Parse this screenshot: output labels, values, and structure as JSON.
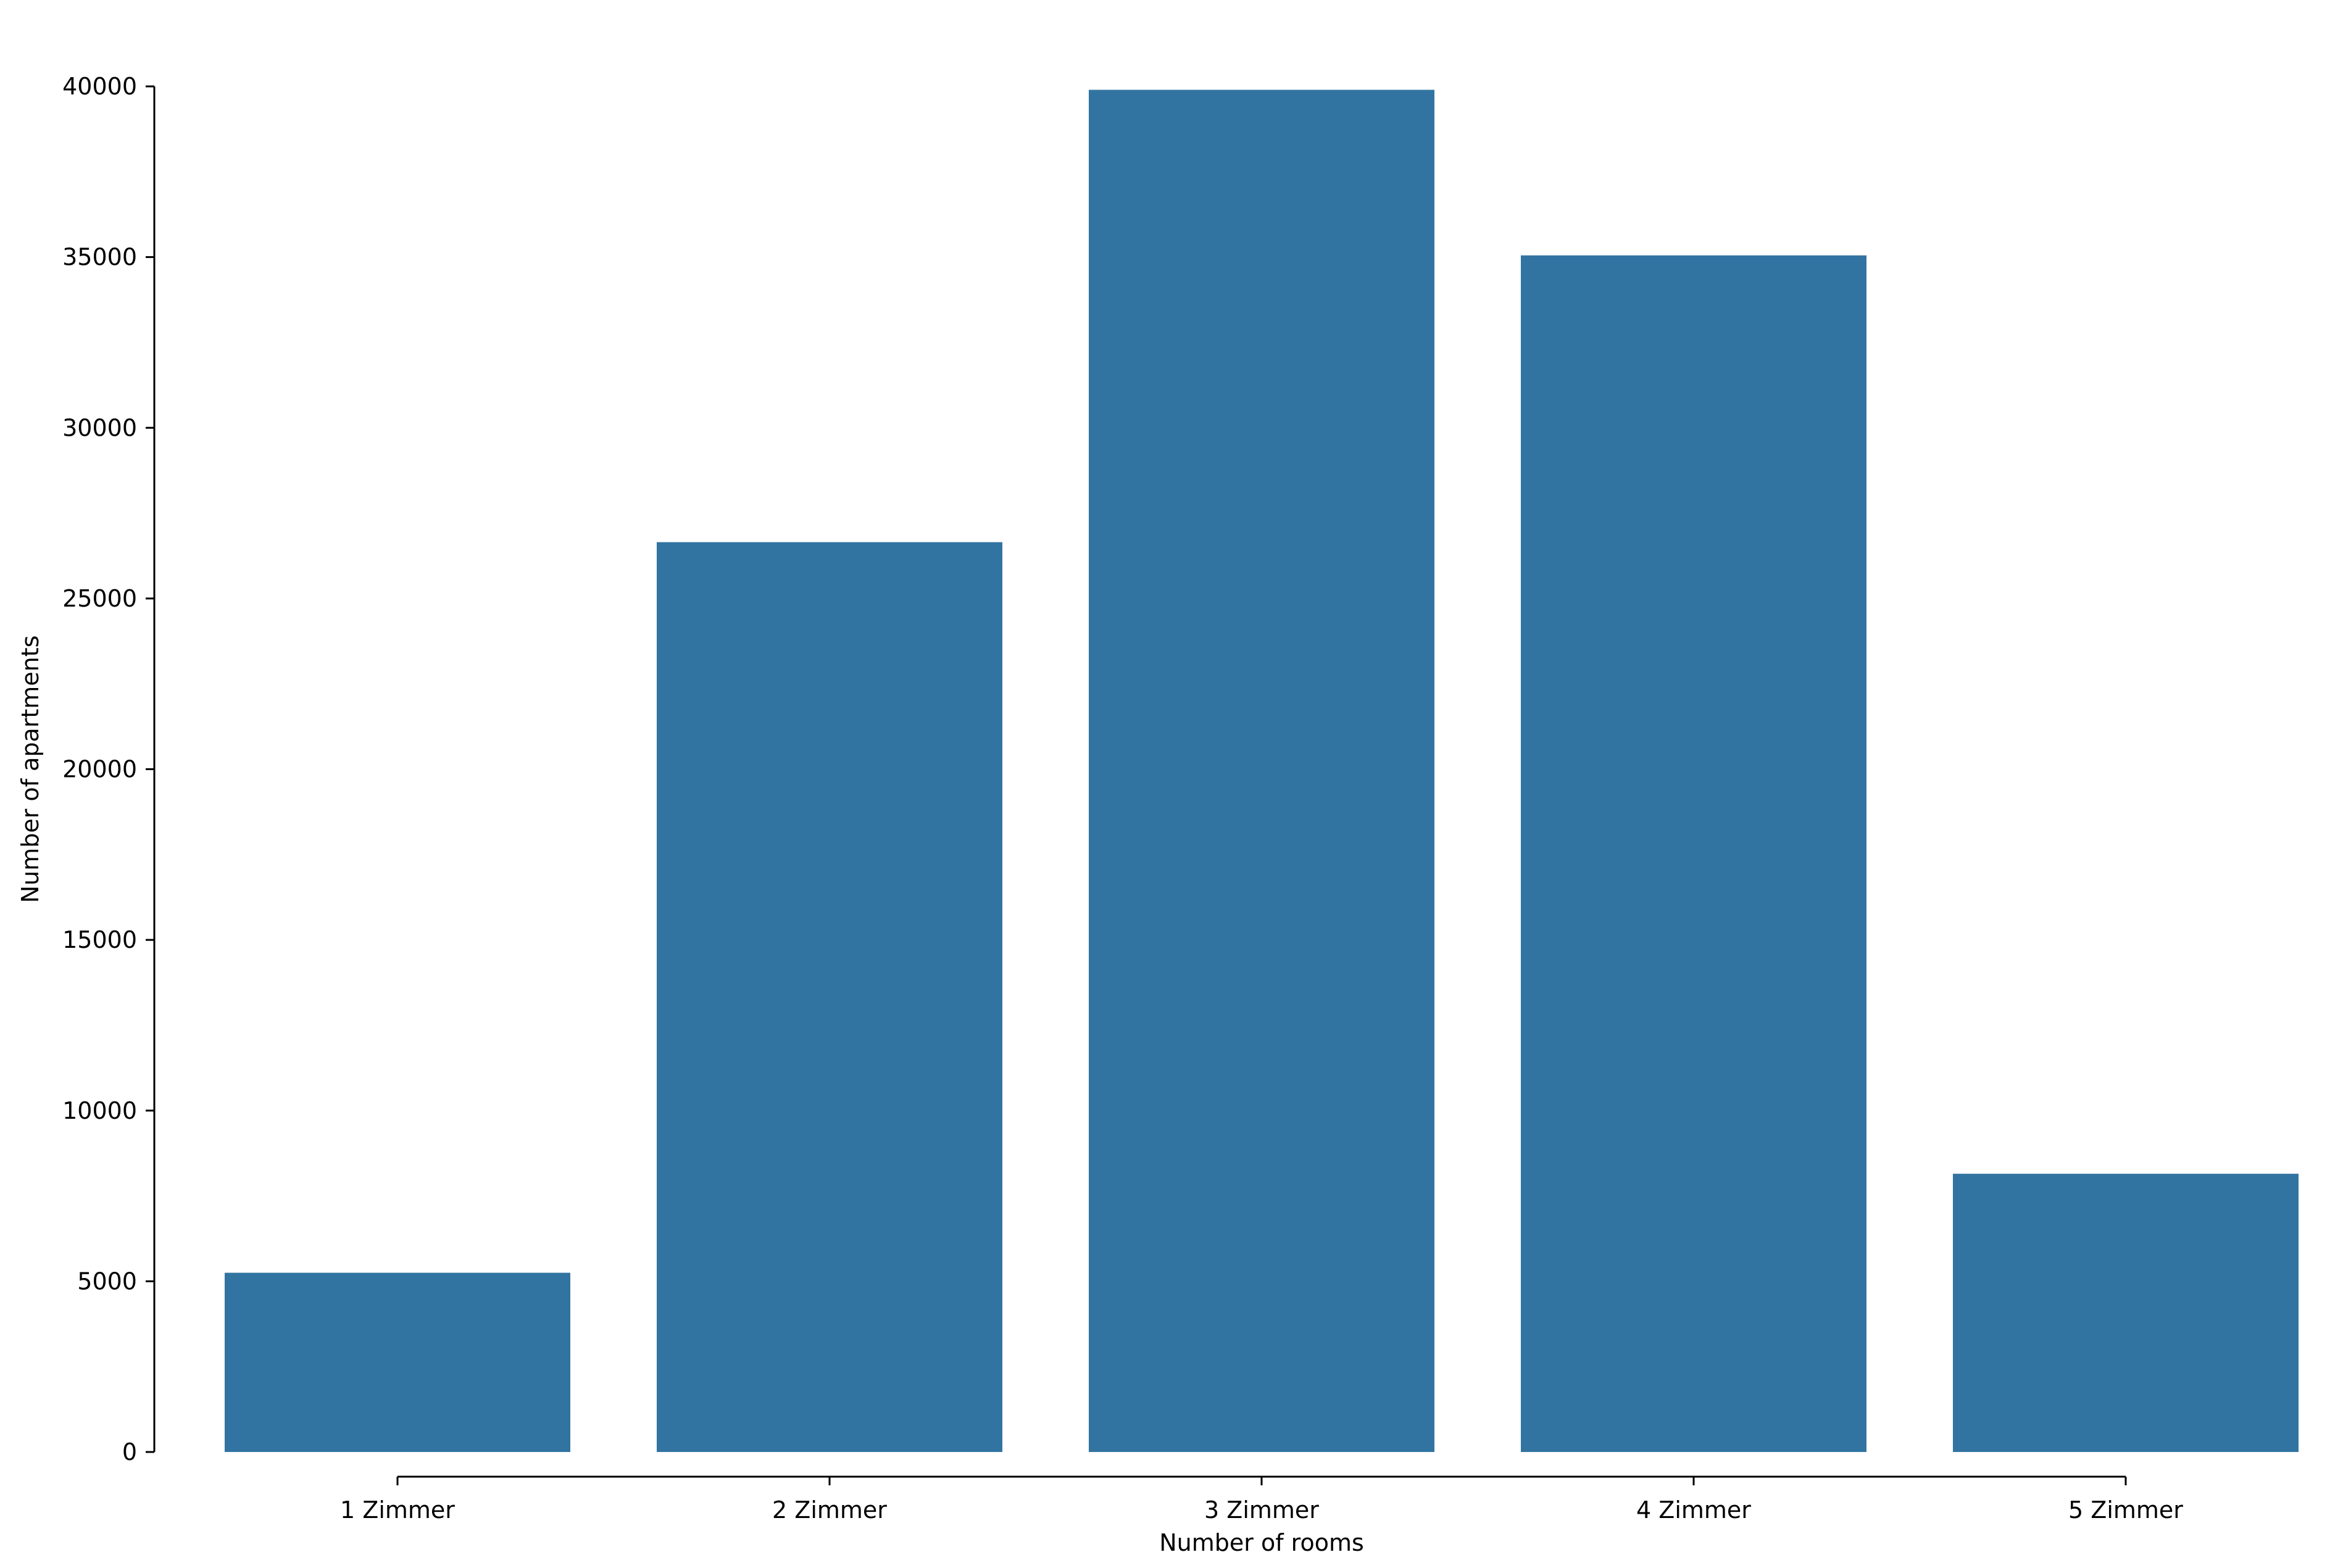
{
  "chart_data": {
    "type": "bar",
    "title": "",
    "xlabel": "Number of rooms",
    "ylabel": "Number of apartments",
    "categories": [
      "1 Zimmer",
      "2 Zimmer",
      "3 Zimmer",
      "4 Zimmer",
      "5 Zimmer"
    ],
    "values": [
      5250,
      26650,
      39900,
      35050,
      8150
    ],
    "ylim": [
      0,
      40000
    ],
    "yticks": [
      "0",
      "5000",
      "10000",
      "15000",
      "20000",
      "25000",
      "30000",
      "35000",
      "40000"
    ],
    "grid": false,
    "legend": "none",
    "colors": {
      "bar": "#3274a1",
      "axis": "#000000"
    }
  }
}
